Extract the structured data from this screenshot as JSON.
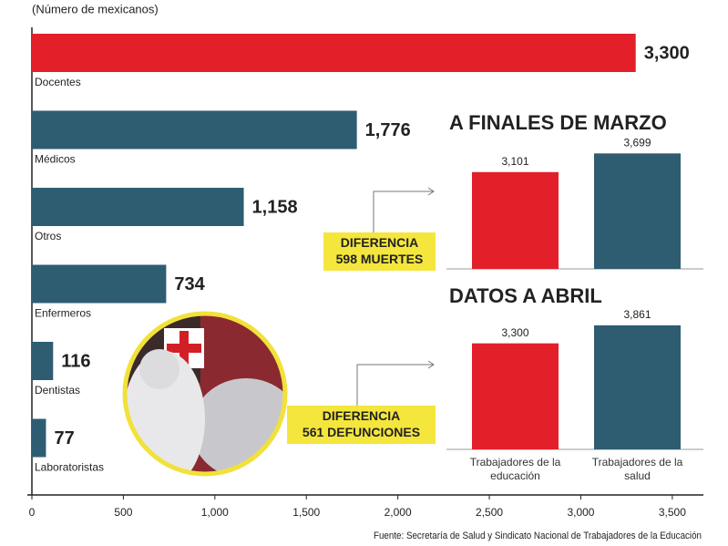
{
  "chart_data": [
    {
      "type": "bar",
      "orientation": "horizontal",
      "subtitle": "(Número de mexicanos)",
      "categories": [
        "Docentes",
        "Médicos",
        "Otros",
        "Enfermeros",
        "Dentistas",
        "Laboratoristas"
      ],
      "values": [
        3300,
        1776,
        1158,
        734,
        116,
        77
      ],
      "value_labels": [
        "3,300",
        "1,776",
        "1,158",
        "734",
        "116",
        "77"
      ],
      "colors": [
        "#e3202a",
        "#2e5d72",
        "#2e5d72",
        "#2e5d72",
        "#2e5d72",
        "#2e5d72"
      ],
      "xlim": [
        0,
        3650
      ],
      "xticks": [
        0,
        500,
        {
          "value": 1000,
          "label": "1,000"
        },
        {
          "value": 1500,
          "label": "1,500"
        },
        {
          "value": 2000,
          "label": "2,000"
        },
        {
          "value": 2500,
          "label": "2,500"
        },
        {
          "value": 3000,
          "label": "3,000"
        },
        {
          "value": 3500,
          "label": "3,500"
        }
      ],
      "source": "Fuente: Secretaría de Salud y Sindicato Nacional de Trabajadores de la Educación"
    },
    {
      "type": "bar",
      "title": "A FINALES DE MARZO",
      "values": [
        3101,
        3699
      ],
      "value_labels": [
        "3,101",
        "3,699"
      ],
      "colors": [
        "#e3202a",
        "#2e5d72"
      ],
      "ylim": [
        0,
        4000
      ],
      "annotation": [
        "DIFERENCIA",
        "598 MUERTES"
      ]
    },
    {
      "type": "bar",
      "title": "DATOS A ABRIL",
      "categories": [
        "Trabajadores de la educación",
        "Trabajadores de la salud"
      ],
      "values": [
        3300,
        3861
      ],
      "value_labels": [
        "3,300",
        "3,861"
      ],
      "colors": [
        "#e3202a",
        "#2e5d72"
      ],
      "ylim": [
        0,
        4000
      ],
      "annotation": [
        "DIFERENCIA",
        "561 DEFUNCIONES"
      ]
    }
  ]
}
